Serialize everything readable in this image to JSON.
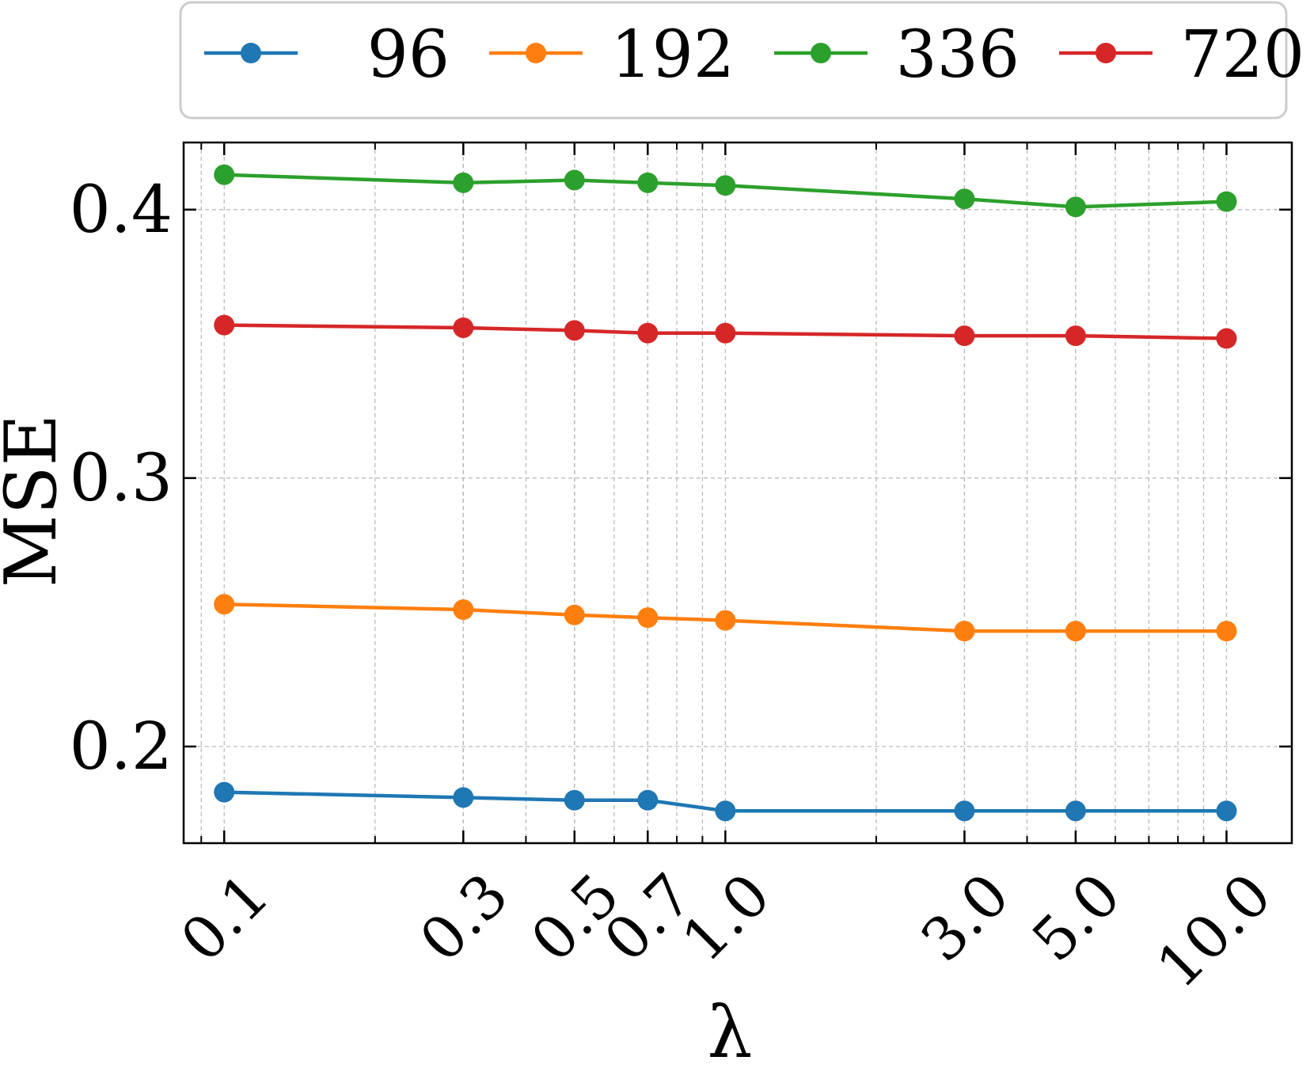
{
  "chart_data": {
    "type": "line",
    "title": "",
    "xlabel": "λ",
    "ylabel": "MSE",
    "x_scale": "log",
    "x": [
      0.1,
      0.3,
      0.5,
      0.7,
      1.0,
      3.0,
      5.0,
      10.0
    ],
    "x_tick_labels": [
      "0.1",
      "0.3",
      "0.5",
      "0.7",
      "1.0",
      "3.0",
      "5.0",
      "10.0"
    ],
    "xlim": [
      0.083,
      13.5
    ],
    "ylim": [
      0.164,
      0.425
    ],
    "y_ticks": [
      0.2,
      0.3,
      0.4
    ],
    "y_tick_labels": [
      "0.2",
      "0.3",
      "0.4"
    ],
    "grid": true,
    "legend_position": "top",
    "series": [
      {
        "name": "96",
        "color": "#1f77b4",
        "values": [
          0.183,
          0.181,
          0.18,
          0.18,
          0.176,
          0.176,
          0.176,
          0.176
        ]
      },
      {
        "name": "192",
        "color": "#ff7f0e",
        "values": [
          0.253,
          0.251,
          0.249,
          0.248,
          0.247,
          0.243,
          0.243,
          0.243
        ]
      },
      {
        "name": "336",
        "color": "#2ca02c",
        "values": [
          0.413,
          0.41,
          0.411,
          0.41,
          0.409,
          0.404,
          0.401,
          0.403
        ]
      },
      {
        "name": "720",
        "color": "#d62728",
        "values": [
          0.357,
          0.356,
          0.355,
          0.354,
          0.354,
          0.353,
          0.353,
          0.352
        ]
      }
    ]
  }
}
